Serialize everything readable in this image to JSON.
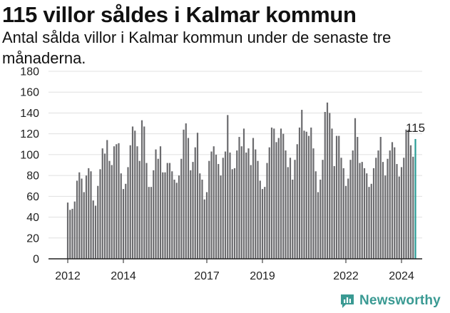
{
  "chart_data": {
    "type": "bar",
    "title": "115 villor såldes i Kalmar kommun",
    "subtitle": "Antal sålda villor i Kalmar kommun under de senaste tre månaderna.",
    "xlabel": "",
    "ylabel": "",
    "ylim": [
      0,
      180
    ],
    "yticks": [
      "0",
      "20",
      "40",
      "60",
      "80",
      "100",
      "120",
      "140",
      "160",
      "180"
    ],
    "xticks": [
      {
        "label": "2012",
        "index": 0
      },
      {
        "label": "2014",
        "index": 24
      },
      {
        "label": "2017",
        "index": 60
      },
      {
        "label": "2019",
        "index": 84
      },
      {
        "label": "2022",
        "index": 120
      },
      {
        "label": "2024",
        "index": 144
      }
    ],
    "grid": true,
    "bar_color": "#6b6b6e",
    "highlight_color": "#2a9d96",
    "values": [
      54,
      47,
      48,
      55,
      75,
      83,
      77,
      64,
      80,
      87,
      84,
      56,
      51,
      70,
      86,
      106,
      101,
      114,
      94,
      90,
      108,
      110,
      111,
      82,
      67,
      72,
      88,
      109,
      127,
      123,
      108,
      94,
      133,
      127,
      92,
      69,
      69,
      85,
      105,
      96,
      108,
      83,
      83,
      92,
      92,
      84,
      76,
      73,
      80,
      96,
      124,
      130,
      116,
      85,
      93,
      107,
      121,
      82,
      76,
      57,
      64,
      94,
      103,
      108,
      100,
      91,
      80,
      97,
      103,
      138,
      102,
      86,
      87,
      104,
      117,
      108,
      125,
      102,
      106,
      90,
      116,
      105,
      94,
      75,
      67,
      69,
      92,
      107,
      126,
      125,
      112,
      116,
      125,
      120,
      104,
      88,
      97,
      76,
      95,
      110,
      126,
      143,
      123,
      122,
      118,
      126,
      106,
      84,
      64,
      76,
      95,
      141,
      150,
      140,
      125,
      89,
      118,
      118,
      97,
      87,
      70,
      77,
      95,
      104,
      135,
      117,
      92,
      93,
      87,
      82,
      69,
      72,
      87,
      97,
      104,
      117,
      93,
      80,
      96,
      104,
      112,
      107,
      91,
      79,
      88,
      97,
      124,
      124,
      109,
      98,
      115
    ],
    "last_label": "115",
    "source": "Newsworthy"
  }
}
